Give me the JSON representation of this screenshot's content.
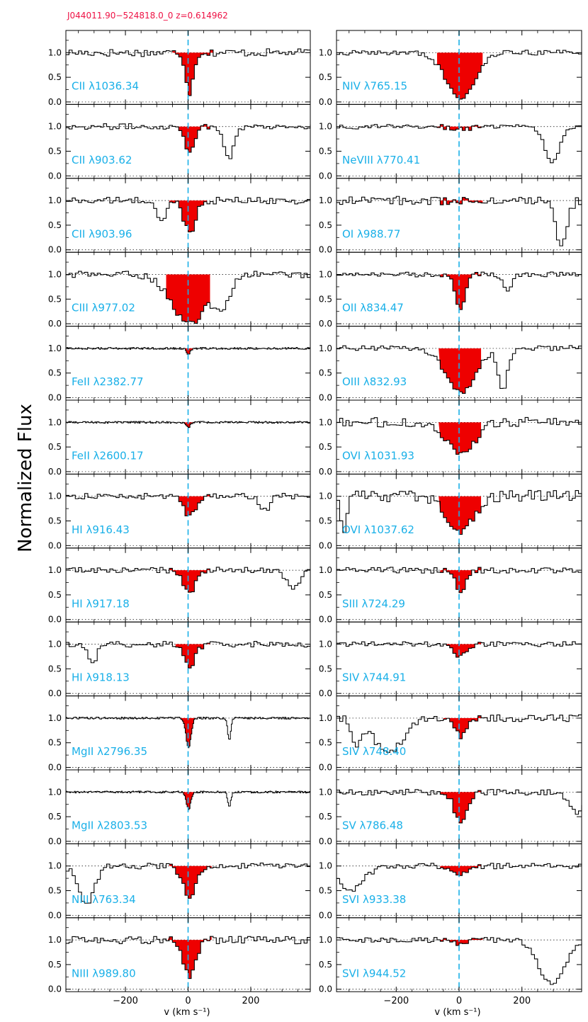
{
  "header": {
    "title": "J044011.90−524818.0_0  z=0.614962",
    "title_color": "#ee1144"
  },
  "ylabel": "Normalized Flux",
  "xlabel_left": "v (km s⁻¹)",
  "xlabel_right": "v (km s⁻¹)",
  "colors": {
    "label": "#1ab0e8",
    "fill": "#ee0000",
    "center_line": "#1ab0e8",
    "spectrum": "#000000"
  },
  "chart_data": {
    "type": "line",
    "xlim": [
      -390,
      390
    ],
    "ylim": [
      -0.05,
      1.45
    ],
    "xticks": [
      -200,
      0,
      200
    ],
    "xtick_labels": [
      "−200",
      "0",
      "200"
    ],
    "yticks": [
      0.0,
      0.5,
      1.0
    ],
    "ytick_labels": [
      "0.0",
      "0.5",
      "1.0"
    ],
    "continuum_level": 1.0,
    "center_velocity": 0,
    "panels": [
      {
        "col": 0,
        "row": 0,
        "label": "CII λ1036.34",
        "fill_range": [
          -50,
          80
        ],
        "lines": [
          {
            "v": 0,
            "depth": 0.8,
            "width": 12
          }
        ],
        "noise": 0.08,
        "resolution": 10
      },
      {
        "col": 0,
        "row": 1,
        "label": "CII λ903.62",
        "fill_range": [
          -40,
          70
        ],
        "lines": [
          {
            "v": 0,
            "depth": 0.5,
            "width": 15
          },
          {
            "v": 125,
            "depth": 0.65,
            "width": 15
          }
        ],
        "noise": 0.06,
        "resolution": 10
      },
      {
        "col": 0,
        "row": 2,
        "label": "CII λ903.96",
        "fill_range": [
          -60,
          60
        ],
        "lines": [
          {
            "v": 0,
            "depth": 0.65,
            "width": 18
          },
          {
            "v": -90,
            "depth": 0.45,
            "width": 15
          }
        ],
        "noise": 0.07,
        "resolution": 10
      },
      {
        "col": 0,
        "row": 3,
        "label": "CIII λ977.02",
        "fill_range": [
          -70,
          70
        ],
        "lines": [
          {
            "v": 0,
            "depth": 1.0,
            "width": 55
          },
          {
            "v": 100,
            "depth": 0.7,
            "width": 25
          }
        ],
        "noise": 0.07,
        "resolution": 10
      },
      {
        "col": 0,
        "row": 4,
        "label": "FeII λ2382.77",
        "fill_range": [
          -20,
          20
        ],
        "lines": [
          {
            "v": 0,
            "depth": 0.12,
            "width": 6
          }
        ],
        "noise": 0.02,
        "resolution": 3
      },
      {
        "col": 0,
        "row": 5,
        "label": "FeII λ2600.17",
        "fill_range": [
          -20,
          20
        ],
        "lines": [
          {
            "v": 0,
            "depth": 0.1,
            "width": 6
          }
        ],
        "noise": 0.02,
        "resolution": 3
      },
      {
        "col": 0,
        "row": 6,
        "label": "HI λ916.43",
        "fill_range": [
          -50,
          75
        ],
        "lines": [
          {
            "v": 0,
            "depth": 0.4,
            "width": 18
          },
          {
            "v": 240,
            "depth": 0.3,
            "width": 15
          }
        ],
        "noise": 0.06,
        "resolution": 10
      },
      {
        "col": 0,
        "row": 7,
        "label": "HI λ917.18",
        "fill_range": [
          -60,
          70
        ],
        "lines": [
          {
            "v": 0,
            "depth": 0.5,
            "width": 18
          },
          {
            "v": 330,
            "depth": 0.35,
            "width": 20
          }
        ],
        "noise": 0.06,
        "resolution": 10
      },
      {
        "col": 0,
        "row": 8,
        "label": "HI λ918.13",
        "fill_range": [
          -40,
          70
        ],
        "lines": [
          {
            "v": 0,
            "depth": 0.45,
            "width": 18
          },
          {
            "v": -310,
            "depth": 0.35,
            "width": 15
          }
        ],
        "noise": 0.06,
        "resolution": 10
      },
      {
        "col": 0,
        "row": 9,
        "label": "MgII λ2796.35",
        "fill_range": [
          -25,
          25
        ],
        "lines": [
          {
            "v": 0,
            "depth": 0.6,
            "width": 8
          },
          {
            "v": 130,
            "depth": 0.45,
            "width": 5
          }
        ],
        "noise": 0.02,
        "resolution": 3
      },
      {
        "col": 0,
        "row": 10,
        "label": "MgII λ2803.53",
        "fill_range": [
          -20,
          20
        ],
        "lines": [
          {
            "v": 0,
            "depth": 0.35,
            "width": 7
          },
          {
            "v": 130,
            "depth": 0.3,
            "width": 5
          }
        ],
        "noise": 0.02,
        "resolution": 3
      },
      {
        "col": 0,
        "row": 11,
        "label": "NIII λ763.34",
        "fill_range": [
          -60,
          75
        ],
        "lines": [
          {
            "v": 0,
            "depth": 0.6,
            "width": 22
          },
          {
            "v": -330,
            "depth": 0.8,
            "width": 25
          }
        ],
        "noise": 0.06,
        "resolution": 10
      },
      {
        "col": 0,
        "row": 12,
        "label": "NIII λ989.80",
        "fill_range": [
          -65,
          75
        ],
        "lines": [
          {
            "v": 0,
            "depth": 0.75,
            "width": 20
          }
        ],
        "noise": 0.08,
        "resolution": 10
      },
      {
        "col": 1,
        "row": 0,
        "label": "NIV λ765.15",
        "fill_range": [
          -70,
          75
        ],
        "lines": [
          {
            "v": 0,
            "depth": 0.95,
            "width": 45
          }
        ],
        "noise": 0.05,
        "resolution": 10
      },
      {
        "col": 1,
        "row": 1,
        "label": "NeVIII λ770.41",
        "fill_range": [
          -70,
          70
        ],
        "lines": [
          {
            "v": 0,
            "depth": 0.05,
            "width": 30
          },
          {
            "v": 290,
            "depth": 0.75,
            "width": 22
          }
        ],
        "noise": 0.05,
        "resolution": 10
      },
      {
        "col": 1,
        "row": 2,
        "label": "OI λ988.77",
        "fill_range": [
          -60,
          75
        ],
        "lines": [
          {
            "v": 320,
            "depth": 0.85,
            "width": 18
          }
        ],
        "noise": 0.09,
        "resolution": 10
      },
      {
        "col": 1,
        "row": 3,
        "label": "OII λ834.47",
        "fill_range": [
          -60,
          70
        ],
        "lines": [
          {
            "v": 0,
            "depth": 0.7,
            "width": 15
          },
          {
            "v": 150,
            "depth": 0.3,
            "width": 15
          }
        ],
        "noise": 0.05,
        "resolution": 10
      },
      {
        "col": 1,
        "row": 4,
        "label": "OIII λ832.93",
        "fill_range": [
          -65,
          70
        ],
        "lines": [
          {
            "v": 0,
            "depth": 0.9,
            "width": 45
          },
          {
            "v": 135,
            "depth": 0.8,
            "width": 15
          }
        ],
        "noise": 0.06,
        "resolution": 10
      },
      {
        "col": 1,
        "row": 5,
        "label": "OVI λ1031.93",
        "fill_range": [
          -65,
          70
        ],
        "lines": [
          {
            "v": 0,
            "depth": 0.7,
            "width": 40
          }
        ],
        "noise": 0.1,
        "resolution": 10
      },
      {
        "col": 1,
        "row": 6,
        "label": "OVI λ1037.62",
        "fill_range": [
          -65,
          70
        ],
        "lines": [
          {
            "v": 0,
            "depth": 0.7,
            "width": 40
          },
          {
            "v": -370,
            "depth": 0.7,
            "width": 10
          }
        ],
        "noise": 0.12,
        "resolution": 10
      },
      {
        "col": 1,
        "row": 7,
        "label": "SIII λ724.29",
        "fill_range": [
          -60,
          70
        ],
        "lines": [
          {
            "v": 0,
            "depth": 0.45,
            "width": 15
          }
        ],
        "noise": 0.06,
        "resolution": 10
      },
      {
        "col": 1,
        "row": 8,
        "label": "SIV λ744.91",
        "fill_range": [
          -50,
          70
        ],
        "lines": [
          {
            "v": 0,
            "depth": 0.25,
            "width": 20
          }
        ],
        "noise": 0.05,
        "resolution": 10
      },
      {
        "col": 1,
        "row": 9,
        "label": "SIV λ748.40",
        "fill_range": [
          -50,
          90
        ],
        "lines": [
          {
            "v": 0,
            "depth": 0.35,
            "width": 20
          },
          {
            "v": -230,
            "depth": 0.7,
            "width": 45
          },
          {
            "v": -330,
            "depth": 0.5,
            "width": 15
          }
        ],
        "noise": 0.07,
        "resolution": 10
      },
      {
        "col": 1,
        "row": 10,
        "label": "SV λ786.48",
        "fill_range": [
          -60,
          70
        ],
        "lines": [
          {
            "v": 0,
            "depth": 0.6,
            "width": 20
          },
          {
            "v": 370,
            "depth": 0.4,
            "width": 25
          }
        ],
        "noise": 0.06,
        "resolution": 10
      },
      {
        "col": 1,
        "row": 11,
        "label": "SVI λ933.38",
        "fill_range": [
          -60,
          70
        ],
        "lines": [
          {
            "v": 0,
            "depth": 0.2,
            "width": 20
          },
          {
            "v": -350,
            "depth": 0.5,
            "width": 40
          }
        ],
        "noise": 0.06,
        "resolution": 10
      },
      {
        "col": 1,
        "row": 12,
        "label": "SVI λ944.52",
        "fill_range": [
          -70,
          75
        ],
        "lines": [
          {
            "v": 0,
            "depth": 0.1,
            "width": 20
          },
          {
            "v": 290,
            "depth": 0.9,
            "width": 40
          }
        ],
        "noise": 0.05,
        "resolution": 10
      }
    ]
  }
}
